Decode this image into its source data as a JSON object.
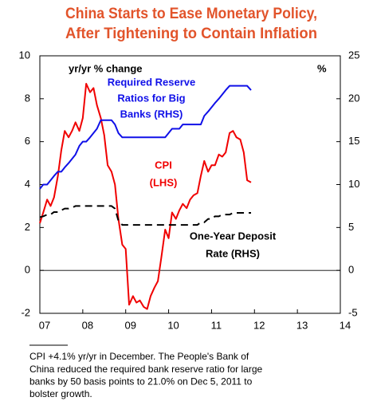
{
  "chart_data": {
    "type": "line",
    "title": [
      "China Starts to Ease Monetary Policy,",
      "After Tightening to Contain Inflation"
    ],
    "title_color": "#e2542b",
    "y_label": "yr/yr % change",
    "y2_label": "%",
    "x": [
      2007,
      2007.08,
      2007.17,
      2007.25,
      2007.33,
      2007.42,
      2007.5,
      2007.58,
      2007.67,
      2007.75,
      2007.83,
      2007.92,
      2008,
      2008.08,
      2008.17,
      2008.25,
      2008.33,
      2008.42,
      2008.5,
      2008.58,
      2008.67,
      2008.75,
      2008.83,
      2008.92,
      2009,
      2009.08,
      2009.17,
      2009.25,
      2009.33,
      2009.42,
      2009.5,
      2009.58,
      2009.67,
      2009.75,
      2009.83,
      2009.92,
      2010,
      2010.08,
      2010.17,
      2010.25,
      2010.33,
      2010.42,
      2010.5,
      2010.58,
      2010.67,
      2010.75,
      2010.83,
      2010.92,
      2011,
      2011.08,
      2011.17,
      2011.25,
      2011.33,
      2011.42,
      2011.5,
      2011.58,
      2011.67,
      2011.75,
      2011.83,
      2011.92
    ],
    "series": [
      {
        "name": "CPI",
        "color": "#f00000",
        "axis": "y",
        "dashed": false,
        "values": [
          2.2,
          2.7,
          3.3,
          3.0,
          3.4,
          4.4,
          5.6,
          6.5,
          6.2,
          6.5,
          6.9,
          6.5,
          7.1,
          8.7,
          8.3,
          8.5,
          7.7,
          7.1,
          6.3,
          4.9,
          4.6,
          4.0,
          2.4,
          1.2,
          1.0,
          -1.6,
          -1.2,
          -1.5,
          -1.4,
          -1.7,
          -1.8,
          -1.2,
          -0.8,
          -0.5,
          0.6,
          1.9,
          1.5,
          2.7,
          2.4,
          2.8,
          3.1,
          2.9,
          3.3,
          3.5,
          3.6,
          4.4,
          5.1,
          4.6,
          4.9,
          4.9,
          5.4,
          5.3,
          5.5,
          6.4,
          6.5,
          6.2,
          6.1,
          5.5,
          4.2,
          4.1
        ]
      },
      {
        "name": "Required Reserve Ratios for Big Banks",
        "color": "#1010e8",
        "axis": "y2",
        "dashed": false,
        "values": [
          9.5,
          10,
          10,
          10.5,
          11,
          11.5,
          11.5,
          12,
          12.5,
          13,
          13.5,
          14.5,
          15,
          15,
          15.5,
          16,
          16.5,
          17.5,
          17.5,
          17.5,
          17.5,
          17,
          16,
          15.5,
          15.5,
          15.5,
          15.5,
          15.5,
          15.5,
          15.5,
          15.5,
          15.5,
          15.5,
          15.5,
          15.5,
          15.5,
          16,
          16.5,
          16.5,
          16.5,
          17,
          17,
          17,
          17,
          17,
          17,
          18,
          18.5,
          19,
          19.5,
          20,
          20.5,
          21,
          21.5,
          21.5,
          21.5,
          21.5,
          21.5,
          21.5,
          21
        ]
      },
      {
        "name": "One-Year Deposit Rate",
        "color": "#000000",
        "axis": "y2",
        "dashed": true,
        "values": [
          6.2,
          6.3,
          6.5,
          6.5,
          6.8,
          6.8,
          7.0,
          7.2,
          7.2,
          7.3,
          7.5,
          7.5,
          7.5,
          7.5,
          7.5,
          7.5,
          7.5,
          7.5,
          7.5,
          7.5,
          7.5,
          7.2,
          5.8,
          5.3,
          5.3,
          5.3,
          5.3,
          5.3,
          5.3,
          5.3,
          5.3,
          5.3,
          5.3,
          5.3,
          5.3,
          5.3,
          5.3,
          5.3,
          5.3,
          5.3,
          5.3,
          5.3,
          5.3,
          5.3,
          5.3,
          5.6,
          5.6,
          6.0,
          6.0,
          6.3,
          6.3,
          6.5,
          6.5,
          6.5,
          6.7,
          6.7,
          6.7,
          6.7,
          6.7,
          6.7
        ]
      }
    ],
    "annotations": [
      {
        "lines": [
          "Required Reserve",
          "Ratios for Big",
          "Banks (RHS)"
        ],
        "color": "#1010e8"
      },
      {
        "lines": [
          "CPI",
          "(LHS)"
        ],
        "color": "#f00000"
      },
      {
        "lines": [
          "One-Year Deposit",
          "Rate (RHS)"
        ],
        "color": "#000000"
      }
    ],
    "xlim": [
      2007,
      2014
    ],
    "xticks": [
      {
        "value": 2007,
        "label": "07"
      },
      {
        "value": 2008,
        "label": "08"
      },
      {
        "value": 2009,
        "label": "09"
      },
      {
        "value": 2010,
        "label": "10"
      },
      {
        "value": 2011,
        "label": "11"
      },
      {
        "value": 2012,
        "label": "12"
      },
      {
        "value": 2013,
        "label": "13"
      },
      {
        "value": 2014,
        "label": "14"
      }
    ],
    "ylim": [
      -2,
      10
    ],
    "yticks": [
      -2,
      0,
      2,
      4,
      6,
      8,
      10
    ],
    "y2lim": [
      -5,
      25
    ],
    "y2ticks": [
      -5,
      0,
      5,
      10,
      15,
      20,
      25
    ],
    "footnote": [
      "CPI +4.1% yr/yr in December. The People's Bank of",
      "China reduced the required bank reserve ratio for large",
      "banks by 50 basis points to 21.0% on Dec 5, 2011 to",
      "bolster growth."
    ]
  }
}
